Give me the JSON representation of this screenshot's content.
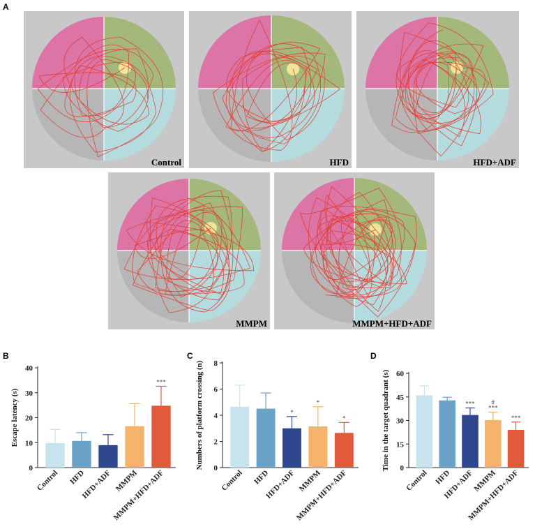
{
  "panels": {
    "A": "A",
    "B": "B",
    "C": "C",
    "D": "D"
  },
  "maze_panels": [
    {
      "label": "Control"
    },
    {
      "label": "HFD"
    },
    {
      "label": "HFD+ADF"
    },
    {
      "label": "MMPM"
    },
    {
      "label": "MMPM+HFD+ADF"
    }
  ],
  "colors": {
    "quadrant_nw": "#dc74a6",
    "quadrant_ne": "#a3b87a",
    "quadrant_sw": "#b6b6b6",
    "quadrant_se": "#b4dcdf",
    "panel_bg": "#c8c8c8",
    "platform": "#f2e79a",
    "path": "#e23a2e"
  },
  "chart_data": [
    {
      "type": "bar",
      "panel": "B",
      "categories": [
        "Control",
        "HFD",
        "HFD+ADF",
        "MMPM",
        "MMPM+HFD+ADF"
      ],
      "values": [
        9.8,
        10.7,
        9.0,
        16.6,
        24.8
      ],
      "errors": [
        5.5,
        3.3,
        4.2,
        9.0,
        7.8
      ],
      "significance": [
        "",
        "",
        "",
        "",
        "***"
      ],
      "colors": [
        "#c6e3ee",
        "#6ba2c7",
        "#2f478f",
        "#f6b36b",
        "#e05a3b"
      ],
      "ylabel": "Escape latency (s)",
      "ylim": [
        0,
        40
      ],
      "yticks": [
        0,
        10,
        20,
        30,
        40
      ]
    },
    {
      "type": "bar",
      "panel": "C",
      "categories": [
        "Control",
        "HFD",
        "HFD+ADF",
        "MMPM",
        "MMPM+HFD+ADF"
      ],
      "values": [
        4.65,
        4.5,
        3.0,
        3.15,
        2.65
      ],
      "errors": [
        1.65,
        1.2,
        0.9,
        1.5,
        0.8
      ],
      "significance": [
        "",
        "",
        "*",
        "*",
        "*"
      ],
      "colors": [
        "#c6e3ee",
        "#6ba2c7",
        "#2f478f",
        "#f6b36b",
        "#e05a3b"
      ],
      "ylabel": "Numbers of platform crossing (n)",
      "ylim": [
        0,
        8
      ],
      "yticks": [
        0,
        2,
        4,
        6,
        8
      ]
    },
    {
      "type": "bar",
      "panel": "D",
      "categories": [
        "Control",
        "HFD",
        "HFD+ADF",
        "MMPM",
        "MMPM+HFD+ADF"
      ],
      "values": [
        46,
        42.8,
        33.5,
        30.3,
        24
      ],
      "errors": [
        6,
        2,
        4.5,
        5,
        5
      ],
      "significance": [
        "",
        "",
        "***",
        "#\n***",
        "***"
      ],
      "colors": [
        "#c6e3ee",
        "#6ba2c7",
        "#2f478f",
        "#f6b36b",
        "#e05a3b"
      ],
      "ylabel": "Time in the target quadrant (s)",
      "ylim": [
        0,
        60
      ],
      "yticks": [
        0,
        15,
        30,
        45,
        60
      ]
    }
  ]
}
